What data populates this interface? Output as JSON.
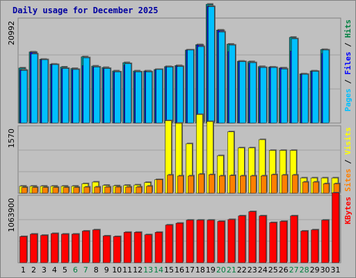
{
  "chart_data": {
    "type": "bar",
    "title": "Daily usage for December 2025",
    "categories": [
      "1",
      "2",
      "3",
      "4",
      "5",
      "6",
      "7",
      "8",
      "9",
      "10",
      "11",
      "12",
      "13",
      "14",
      "15",
      "16",
      "17",
      "18",
      "19",
      "20",
      "21",
      "22",
      "23",
      "24",
      "25",
      "26",
      "27",
      "28",
      "29",
      "30",
      "31"
    ],
    "weekend_days": [
      6,
      7,
      13,
      14,
      20,
      21,
      27,
      28
    ],
    "panels": [
      {
        "id": "pages_files_hits",
        "ytick": 20992,
        "ytick_label": "20992",
        "ymax": 20992,
        "right_label": [
          "Pages",
          " / ",
          "Files",
          " / ",
          "Hits"
        ],
        "right_label_colors": [
          "#00C0FF",
          "#000000",
          "#0000FF",
          "#000000",
          "#008040"
        ],
        "series": [
          {
            "name": "Hits",
            "color": "#008B8B",
            "values": [
              11300,
              14600,
              13100,
              12100,
              11500,
              11200,
              13600,
              11700,
              11400,
              10700,
              12400,
              10700,
              10700,
              11000,
              11600,
              11800,
              15000,
              16100,
              24400,
              19100,
              16200,
              12700,
              12600,
              11600,
              11500,
              11300,
              17600,
              10100,
              10700,
              15100,
              0
            ]
          },
          {
            "name": "Files",
            "color": "#0000FF",
            "values": [
              10900,
              14500,
              13000,
              12000,
              11200,
              11000,
              11800,
              11500,
              11200,
              10500,
              11900,
              10500,
              10600,
              10900,
              11500,
              11700,
              15000,
              16000,
              24000,
              19000,
              14700,
              12600,
              12300,
              11400,
              11400,
              11300,
              14800,
              10000,
              10600,
              14300,
              0
            ]
          },
          {
            "name": "Pages",
            "color": "#00C0FF",
            "values": [
              10800,
              14200,
              13000,
              12000,
              11200,
              11000,
              13400,
              11500,
              11200,
              10500,
              12200,
              10500,
              10500,
              11000,
              11500,
              11600,
              15000,
              15700,
              23900,
              18700,
              16000,
              12600,
              12400,
              11400,
              11400,
              11100,
              17300,
              10000,
              10600,
              15000,
              0
            ]
          }
        ]
      },
      {
        "id": "visits_sites",
        "ytick": 1570,
        "ytick_label": "1570",
        "ymax": 1570,
        "right_label": [
          "Sites",
          " / ",
          "Visits"
        ],
        "right_label_colors": [
          "#FF8000",
          "#000000",
          "#FFFF00"
        ],
        "series": [
          {
            "name": "Visits",
            "color": "#FFFF00",
            "values": [
              170,
              170,
              170,
              170,
              170,
              170,
              230,
              270,
              190,
              180,
              190,
              200,
              260,
              330,
              1760,
              1700,
              1200,
              1910,
              1740,
              910,
              1490,
              1100,
              1100,
              1300,
              1040,
              1040,
              1040,
              370,
              370,
              370,
              370
            ]
          },
          {
            "name": "Sites",
            "color": "#FF8000",
            "values": [
              140,
              140,
              140,
              140,
              140,
              140,
              150,
              150,
              150,
              150,
              150,
              150,
              170,
              330,
              440,
              420,
              420,
              460,
              450,
              420,
              430,
              420,
              420,
              420,
              450,
              440,
              440,
              270,
              270,
              230,
              230
            ]
          }
        ]
      },
      {
        "id": "kbytes",
        "ytick": 1063900,
        "ytick_label": "1063900",
        "ymax": 1063900,
        "right_label": [
          "KBytes"
        ],
        "right_label_colors": [
          "#FF0000"
        ],
        "series": [
          {
            "name": "KBytes",
            "color": "#FF0000",
            "values": [
              430000,
              470000,
              450000,
              480000,
              470000,
              470000,
              520000,
              540000,
              440000,
              430000,
              500000,
              500000,
              460000,
              500000,
              620000,
              650000,
              700000,
              700000,
              700000,
              680000,
              710000,
              770000,
              840000,
              770000,
              660000,
              680000,
              770000,
              520000,
              540000,
              700000,
              1150000
            ]
          }
        ]
      }
    ]
  }
}
